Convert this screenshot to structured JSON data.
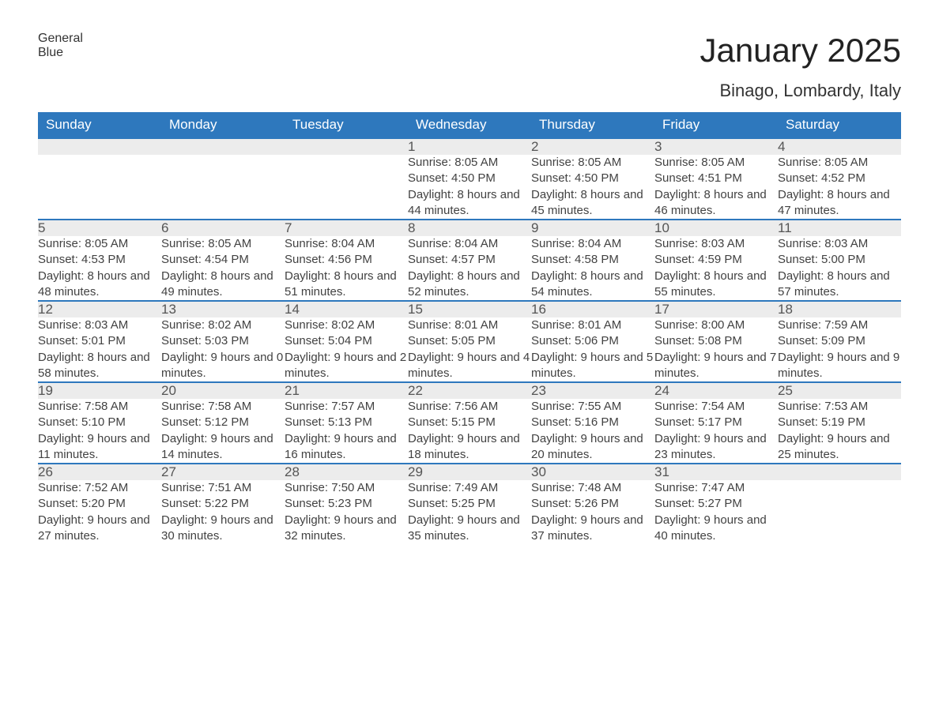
{
  "logo": {
    "text_a": "General",
    "text_b": "Blue"
  },
  "title": "January 2025",
  "location": "Binago, Lombardy, Italy",
  "colors": {
    "header_bg": "#2e78bd",
    "header_fg": "#ffffff",
    "daynum_bg": "#ececec",
    "daynum_border": "#2e78bd",
    "text": "#424242",
    "page_bg": "#ffffff"
  },
  "days_of_week": [
    "Sunday",
    "Monday",
    "Tuesday",
    "Wednesday",
    "Thursday",
    "Friday",
    "Saturday"
  ],
  "weeks": [
    [
      null,
      null,
      null,
      {
        "n": "1",
        "sr": "8:05 AM",
        "ss": "4:50 PM",
        "dl": "8 hours and 44 minutes."
      },
      {
        "n": "2",
        "sr": "8:05 AM",
        "ss": "4:50 PM",
        "dl": "8 hours and 45 minutes."
      },
      {
        "n": "3",
        "sr": "8:05 AM",
        "ss": "4:51 PM",
        "dl": "8 hours and 46 minutes."
      },
      {
        "n": "4",
        "sr": "8:05 AM",
        "ss": "4:52 PM",
        "dl": "8 hours and 47 minutes."
      }
    ],
    [
      {
        "n": "5",
        "sr": "8:05 AM",
        "ss": "4:53 PM",
        "dl": "8 hours and 48 minutes."
      },
      {
        "n": "6",
        "sr": "8:05 AM",
        "ss": "4:54 PM",
        "dl": "8 hours and 49 minutes."
      },
      {
        "n": "7",
        "sr": "8:04 AM",
        "ss": "4:56 PM",
        "dl": "8 hours and 51 minutes."
      },
      {
        "n": "8",
        "sr": "8:04 AM",
        "ss": "4:57 PM",
        "dl": "8 hours and 52 minutes."
      },
      {
        "n": "9",
        "sr": "8:04 AM",
        "ss": "4:58 PM",
        "dl": "8 hours and 54 minutes."
      },
      {
        "n": "10",
        "sr": "8:03 AM",
        "ss": "4:59 PM",
        "dl": "8 hours and 55 minutes."
      },
      {
        "n": "11",
        "sr": "8:03 AM",
        "ss": "5:00 PM",
        "dl": "8 hours and 57 minutes."
      }
    ],
    [
      {
        "n": "12",
        "sr": "8:03 AM",
        "ss": "5:01 PM",
        "dl": "8 hours and 58 minutes."
      },
      {
        "n": "13",
        "sr": "8:02 AM",
        "ss": "5:03 PM",
        "dl": "9 hours and 0 minutes."
      },
      {
        "n": "14",
        "sr": "8:02 AM",
        "ss": "5:04 PM",
        "dl": "9 hours and 2 minutes."
      },
      {
        "n": "15",
        "sr": "8:01 AM",
        "ss": "5:05 PM",
        "dl": "9 hours and 4 minutes."
      },
      {
        "n": "16",
        "sr": "8:01 AM",
        "ss": "5:06 PM",
        "dl": "9 hours and 5 minutes."
      },
      {
        "n": "17",
        "sr": "8:00 AM",
        "ss": "5:08 PM",
        "dl": "9 hours and 7 minutes."
      },
      {
        "n": "18",
        "sr": "7:59 AM",
        "ss": "5:09 PM",
        "dl": "9 hours and 9 minutes."
      }
    ],
    [
      {
        "n": "19",
        "sr": "7:58 AM",
        "ss": "5:10 PM",
        "dl": "9 hours and 11 minutes."
      },
      {
        "n": "20",
        "sr": "7:58 AM",
        "ss": "5:12 PM",
        "dl": "9 hours and 14 minutes."
      },
      {
        "n": "21",
        "sr": "7:57 AM",
        "ss": "5:13 PM",
        "dl": "9 hours and 16 minutes."
      },
      {
        "n": "22",
        "sr": "7:56 AM",
        "ss": "5:15 PM",
        "dl": "9 hours and 18 minutes."
      },
      {
        "n": "23",
        "sr": "7:55 AM",
        "ss": "5:16 PM",
        "dl": "9 hours and 20 minutes."
      },
      {
        "n": "24",
        "sr": "7:54 AM",
        "ss": "5:17 PM",
        "dl": "9 hours and 23 minutes."
      },
      {
        "n": "25",
        "sr": "7:53 AM",
        "ss": "5:19 PM",
        "dl": "9 hours and 25 minutes."
      }
    ],
    [
      {
        "n": "26",
        "sr": "7:52 AM",
        "ss": "5:20 PM",
        "dl": "9 hours and 27 minutes."
      },
      {
        "n": "27",
        "sr": "7:51 AM",
        "ss": "5:22 PM",
        "dl": "9 hours and 30 minutes."
      },
      {
        "n": "28",
        "sr": "7:50 AM",
        "ss": "5:23 PM",
        "dl": "9 hours and 32 minutes."
      },
      {
        "n": "29",
        "sr": "7:49 AM",
        "ss": "5:25 PM",
        "dl": "9 hours and 35 minutes."
      },
      {
        "n": "30",
        "sr": "7:48 AM",
        "ss": "5:26 PM",
        "dl": "9 hours and 37 minutes."
      },
      {
        "n": "31",
        "sr": "7:47 AM",
        "ss": "5:27 PM",
        "dl": "9 hours and 40 minutes."
      },
      null
    ]
  ],
  "labels": {
    "sunrise": "Sunrise:",
    "sunset": "Sunset:",
    "daylight": "Daylight:"
  }
}
